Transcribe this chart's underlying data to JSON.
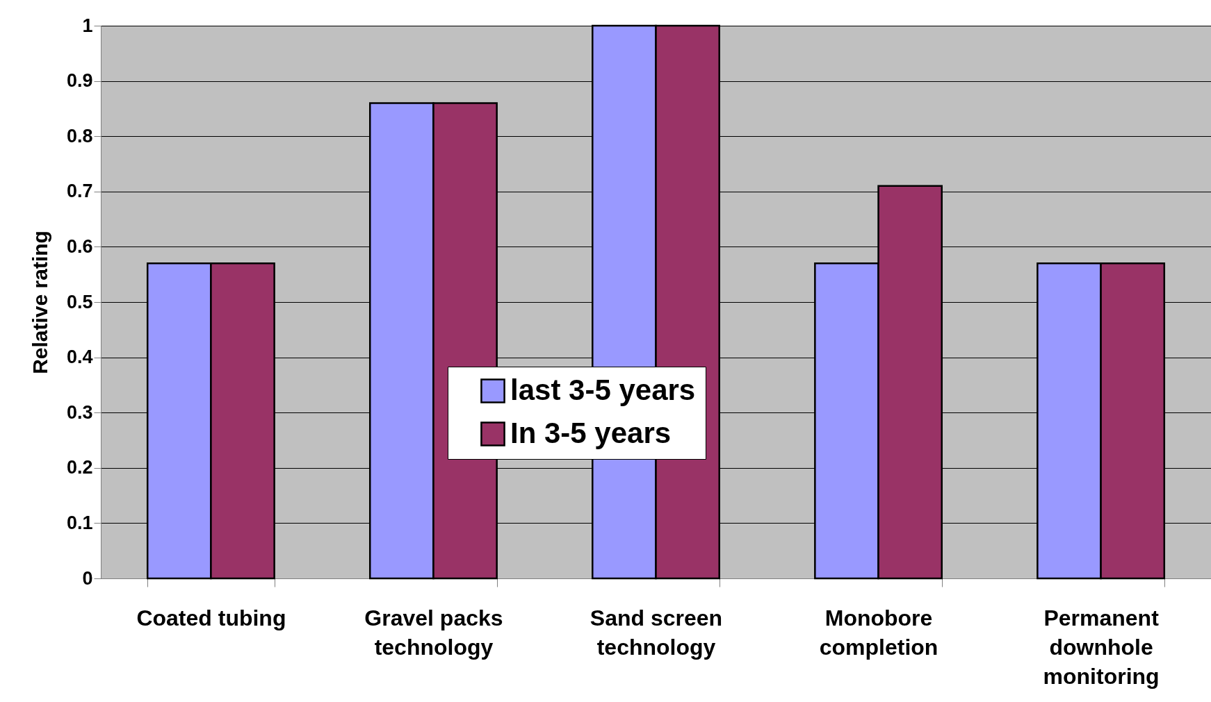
{
  "chart_data": {
    "type": "bar",
    "ylabel": "Relative rating",
    "categories": [
      "Coated tubing",
      "Gravel packs\ntechnology",
      "Sand screen\ntechnology",
      "Monobore\ncompletion",
      "Permanent\ndownhole\nmonitoring"
    ],
    "series": [
      {
        "name": "last 3-5 years",
        "color": "#9999ff",
        "values": [
          0.57,
          0.86,
          1,
          0.57,
          0.57
        ]
      },
      {
        "name": "In 3-5 years",
        "color": "#993366",
        "values": [
          0.57,
          0.86,
          1,
          0.71,
          0.57
        ]
      }
    ],
    "ylim": [
      0,
      1
    ],
    "yticks": [
      0,
      0.1,
      0.2,
      0.3,
      0.4,
      0.5,
      0.6,
      0.7,
      0.8,
      0.9,
      1
    ],
    "grid": "y",
    "legend": "center"
  }
}
